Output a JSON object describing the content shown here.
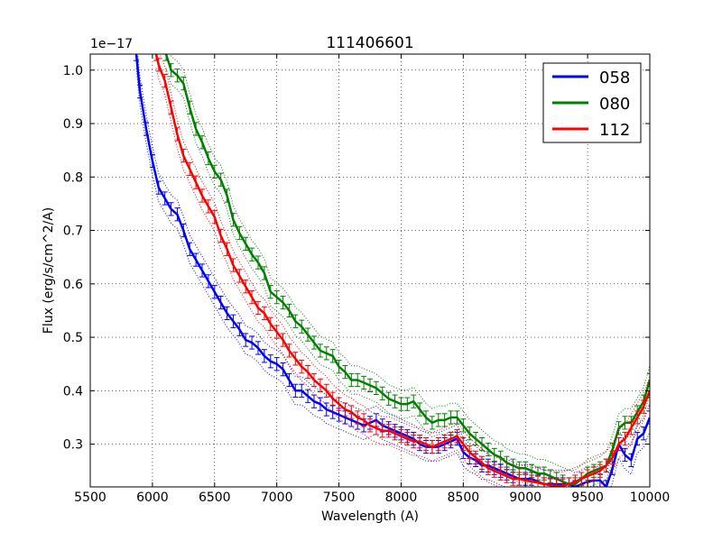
{
  "chart_data": {
    "type": "line",
    "title": "111406601",
    "xlabel": "Wavelength (A)",
    "ylabel": "Flux (erg/s/cm^2/A)",
    "offset_label": "1e−17",
    "xlim": [
      5500,
      10000
    ],
    "ylim": [
      0.22,
      1.03
    ],
    "x_ticks": [
      5500,
      6000,
      6500,
      7000,
      7500,
      8000,
      8500,
      9000,
      9500,
      10000
    ],
    "x_tick_labels": [
      "5500",
      "6000",
      "6500",
      "7000",
      "7500",
      "8000",
      "8500",
      "9000",
      "9500",
      "10000"
    ],
    "y_ticks": [
      0.3,
      0.4,
      0.5,
      0.6,
      0.7,
      0.8,
      0.9,
      1.0
    ],
    "y_tick_labels": [
      "0.3",
      "0.4",
      "0.5",
      "0.6",
      "0.7",
      "0.8",
      "0.9",
      "1.0"
    ],
    "grid": true,
    "legend_position": "top-right",
    "series": [
      {
        "name": "058",
        "color": "#0000ff",
        "x": [
          5870,
          5900,
          5950,
          6000,
          6050,
          6100,
          6150,
          6200,
          6250,
          6300,
          6350,
          6400,
          6450,
          6500,
          6550,
          6600,
          6650,
          6700,
          6750,
          6800,
          6850,
          6900,
          6950,
          7000,
          7050,
          7100,
          7150,
          7200,
          7250,
          7300,
          7350,
          7400,
          7450,
          7500,
          7550,
          7600,
          7650,
          7700,
          7750,
          7800,
          7850,
          7900,
          7950,
          8000,
          8050,
          8100,
          8150,
          8200,
          8250,
          8300,
          8350,
          8400,
          8450,
          8500,
          8550,
          8600,
          8650,
          8700,
          8750,
          8800,
          8850,
          8900,
          8950,
          9000,
          9050,
          9100,
          9150,
          9200,
          9250,
          9300,
          9350,
          9400,
          9450,
          9500,
          9550,
          9600,
          9650,
          9700,
          9750,
          9800,
          9850,
          9900,
          9950,
          10000
        ],
        "y": [
          1.03,
          0.96,
          0.89,
          0.83,
          0.78,
          0.76,
          0.74,
          0.73,
          0.7,
          0.665,
          0.645,
          0.625,
          0.605,
          0.585,
          0.565,
          0.545,
          0.53,
          0.515,
          0.495,
          0.49,
          0.48,
          0.465,
          0.455,
          0.45,
          0.44,
          0.42,
          0.4,
          0.4,
          0.39,
          0.38,
          0.375,
          0.365,
          0.36,
          0.355,
          0.35,
          0.345,
          0.34,
          0.335,
          0.34,
          0.345,
          0.335,
          0.33,
          0.325,
          0.32,
          0.315,
          0.31,
          0.3,
          0.295,
          0.295,
          0.295,
          0.3,
          0.305,
          0.31,
          0.285,
          0.275,
          0.27,
          0.26,
          0.26,
          0.255,
          0.25,
          0.245,
          0.24,
          0.235,
          0.235,
          0.235,
          0.23,
          0.225,
          0.225,
          0.225,
          0.225,
          0.225,
          0.22,
          0.225,
          0.23,
          0.232,
          0.232,
          0.22,
          0.255,
          0.3,
          0.28,
          0.27,
          0.31,
          0.32,
          0.35
        ],
        "err": 0.012
      },
      {
        "name": "080",
        "color": "#008000",
        "x": [
          6110,
          6150,
          6200,
          6250,
          6300,
          6350,
          6400,
          6450,
          6500,
          6550,
          6600,
          6650,
          6700,
          6750,
          6800,
          6850,
          6900,
          6950,
          7000,
          7050,
          7100,
          7150,
          7200,
          7250,
          7300,
          7350,
          7400,
          7450,
          7500,
          7550,
          7600,
          7650,
          7700,
          7750,
          7800,
          7850,
          7900,
          7950,
          8000,
          8050,
          8100,
          8150,
          8200,
          8250,
          8300,
          8350,
          8400,
          8450,
          8500,
          8550,
          8600,
          8650,
          8700,
          8750,
          8800,
          8850,
          8900,
          8950,
          9000,
          9050,
          9100,
          9150,
          9200,
          9250,
          9300,
          9350,
          9400,
          9450,
          9500,
          9550,
          9600,
          9650,
          9700,
          9750,
          9800,
          9850,
          9900,
          9950,
          10000
        ],
        "y": [
          1.03,
          1.0,
          0.99,
          0.975,
          0.93,
          0.89,
          0.865,
          0.835,
          0.81,
          0.795,
          0.765,
          0.72,
          0.695,
          0.675,
          0.655,
          0.64,
          0.62,
          0.585,
          0.575,
          0.565,
          0.55,
          0.53,
          0.52,
          0.505,
          0.49,
          0.475,
          0.47,
          0.465,
          0.445,
          0.435,
          0.42,
          0.42,
          0.415,
          0.41,
          0.405,
          0.395,
          0.385,
          0.38,
          0.375,
          0.375,
          0.38,
          0.365,
          0.35,
          0.34,
          0.345,
          0.345,
          0.35,
          0.35,
          0.335,
          0.32,
          0.31,
          0.3,
          0.29,
          0.28,
          0.275,
          0.265,
          0.26,
          0.255,
          0.255,
          0.25,
          0.245,
          0.245,
          0.24,
          0.235,
          0.23,
          0.225,
          0.225,
          0.235,
          0.245,
          0.25,
          0.255,
          0.26,
          0.29,
          0.33,
          0.34,
          0.34,
          0.36,
          0.38,
          0.42
        ],
        "err": 0.012
      },
      {
        "name": "112",
        "color": "#ff0000",
        "x": [
          6030,
          6050,
          6100,
          6150,
          6200,
          6250,
          6300,
          6350,
          6400,
          6450,
          6500,
          6550,
          6600,
          6650,
          6700,
          6750,
          6800,
          6850,
          6900,
          6950,
          7000,
          7050,
          7100,
          7150,
          7200,
          7250,
          7300,
          7350,
          7400,
          7450,
          7500,
          7550,
          7600,
          7650,
          7700,
          7750,
          7800,
          7850,
          7900,
          7950,
          8000,
          8050,
          8100,
          8150,
          8200,
          8250,
          8300,
          8350,
          8400,
          8450,
          8500,
          8550,
          8600,
          8650,
          8700,
          8750,
          8800,
          8850,
          8900,
          8950,
          9000,
          9050,
          9100,
          9150,
          9200,
          9250,
          9300,
          9350,
          9400,
          9450,
          9500,
          9550,
          9600,
          9650,
          9700,
          9750,
          9800,
          9850,
          9900,
          9950,
          10000
        ],
        "y": [
          1.03,
          1.01,
          0.98,
          0.93,
          0.88,
          0.84,
          0.815,
          0.79,
          0.765,
          0.745,
          0.725,
          0.69,
          0.665,
          0.635,
          0.615,
          0.595,
          0.575,
          0.555,
          0.545,
          0.525,
          0.51,
          0.495,
          0.475,
          0.46,
          0.445,
          0.435,
          0.42,
          0.41,
          0.4,
          0.385,
          0.375,
          0.365,
          0.36,
          0.35,
          0.345,
          0.335,
          0.33,
          0.325,
          0.325,
          0.32,
          0.315,
          0.31,
          0.305,
          0.305,
          0.3,
          0.295,
          0.3,
          0.305,
          0.31,
          0.315,
          0.3,
          0.285,
          0.275,
          0.265,
          0.255,
          0.25,
          0.245,
          0.24,
          0.235,
          0.235,
          0.232,
          0.23,
          0.228,
          0.225,
          0.223,
          0.222,
          0.222,
          0.225,
          0.23,
          0.235,
          0.24,
          0.245,
          0.25,
          0.26,
          0.275,
          0.3,
          0.31,
          0.33,
          0.35,
          0.37,
          0.4
        ],
        "err": 0.012
      }
    ]
  }
}
